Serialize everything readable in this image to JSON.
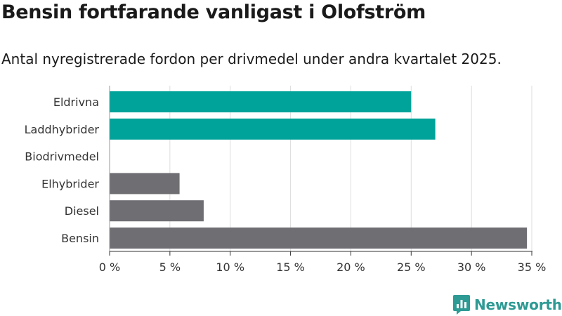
{
  "chart_data": {
    "type": "bar",
    "orientation": "horizontal",
    "title": "Bensin fortfarande vanligast i Olofström",
    "subtitle": "Antal nyregistrerade fordon per drivmedel under andra kvartalet 2025.",
    "categories": [
      "Eldrivna",
      "Laddhybrider",
      "Biodrivmedel",
      "Elhybrider",
      "Diesel",
      "Bensin"
    ],
    "values": [
      25.0,
      27.0,
      0,
      5.8,
      7.8,
      34.6
    ],
    "bar_colors": [
      "#00a39a",
      "#00a39a",
      "#6e6e73",
      "#6e6e73",
      "#6e6e73",
      "#6e6e73"
    ],
    "x_ticks": [
      0,
      5,
      10,
      15,
      20,
      25,
      30,
      35
    ],
    "x_tick_labels": [
      "0 %",
      "5 %",
      "10 %",
      "15 %",
      "20 %",
      "25 %",
      "30 %",
      "35 %"
    ],
    "xlim": [
      0,
      35
    ],
    "grid": true
  },
  "brand": {
    "name": "Newsworthy",
    "color": "#2e9a94"
  }
}
